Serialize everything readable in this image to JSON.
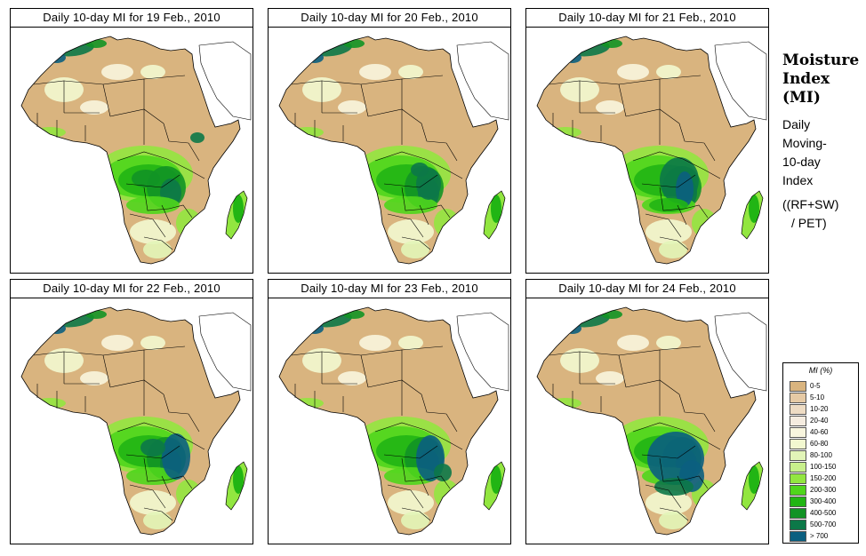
{
  "panels": [
    {
      "title": "Daily 10-day MI for  19 Feb., 2010"
    },
    {
      "title": "Daily 10-day MI for  20 Feb., 2010"
    },
    {
      "title": "Daily 10-day MI for  21 Feb., 2010"
    },
    {
      "title": "Daily 10-day MI for  22 Feb., 2010"
    },
    {
      "title": "Daily 10-day MI for  23 Feb., 2010"
    },
    {
      "title": "Daily 10-day MI for  24 Feb., 2010"
    }
  ],
  "sidebar": {
    "title_line1": "Moisture",
    "title_line2": "Index",
    "title_line3": "(MI)",
    "desc_line1": "Daily",
    "desc_line2": "Moving-",
    "desc_line3": "10-day",
    "desc_line4": "Index",
    "formula_line1": "((RF+SW)",
    "formula_line2": "/ PET)"
  },
  "legend": {
    "title": "MI (%)",
    "items": [
      {
        "label": "0-5",
        "color": "#d9b47f"
      },
      {
        "label": "5-10",
        "color": "#e6caa5"
      },
      {
        "label": "10-20",
        "color": "#eedcc4"
      },
      {
        "label": "20-40",
        "color": "#f5ece0"
      },
      {
        "label": "40-60",
        "color": "#f8f5de"
      },
      {
        "label": "60-80",
        "color": "#f2f8d0"
      },
      {
        "label": "80-100",
        "color": "#e2f5b8"
      },
      {
        "label": "100-150",
        "color": "#c8f08c"
      },
      {
        "label": "150-200",
        "color": "#92e640"
      },
      {
        "label": "200-300",
        "color": "#4fd61c"
      },
      {
        "label": "300-400",
        "color": "#21b514"
      },
      {
        "label": "400-500",
        "color": "#129325"
      },
      {
        "label": "500-700",
        "color": "#0c7848"
      },
      {
        "label": "> 700",
        "color": "#0b5f80"
      }
    ]
  }
}
